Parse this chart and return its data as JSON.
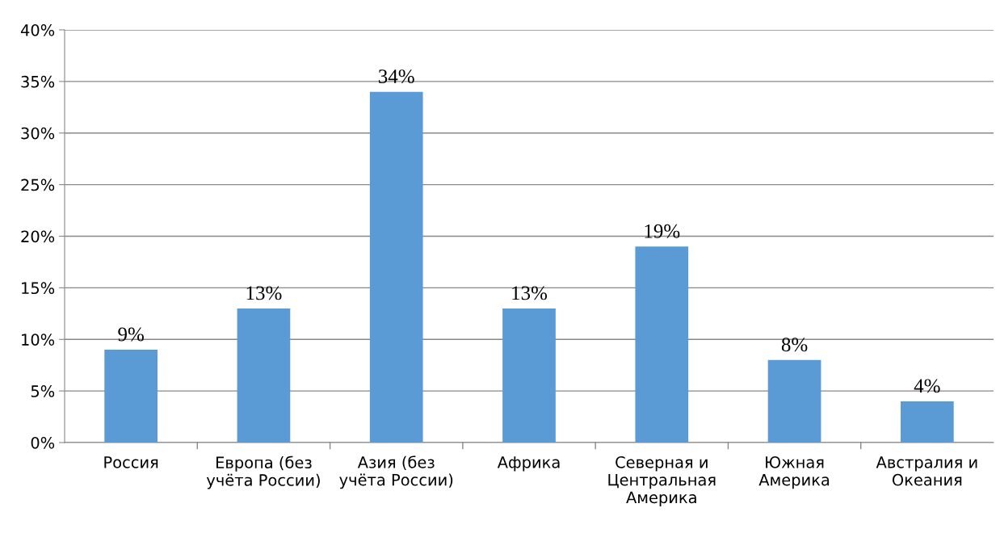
{
  "chart_data": {
    "type": "bar",
    "categories": [
      "Россия",
      "Европа (без\nучёта России)",
      "Азия (без\nучёта России)",
      "Африка",
      "Северная и\nЦентральная\nАмерика",
      "Южная\nАмерика",
      "Австралия и\nОкеания"
    ],
    "values": [
      9,
      13,
      34,
      13,
      19,
      8,
      4
    ],
    "value_labels": [
      "9%",
      "13%",
      "34%",
      "13%",
      "19%",
      "8%",
      "4%"
    ],
    "color": "#5b9bd5",
    "ylim": [
      0,
      40
    ],
    "yticks": [
      {
        "value": 0,
        "label": "0%"
      },
      {
        "value": 5,
        "label": "5%"
      },
      {
        "value": 10,
        "label": "10%"
      },
      {
        "value": 15,
        "label": "15%"
      },
      {
        "value": 20,
        "label": "20%"
      },
      {
        "value": 25,
        "label": "25%"
      },
      {
        "value": 30,
        "label": "30%"
      },
      {
        "value": 35,
        "label": "35%"
      },
      {
        "value": 40,
        "label": "40%"
      }
    ],
    "grid": "y"
  }
}
